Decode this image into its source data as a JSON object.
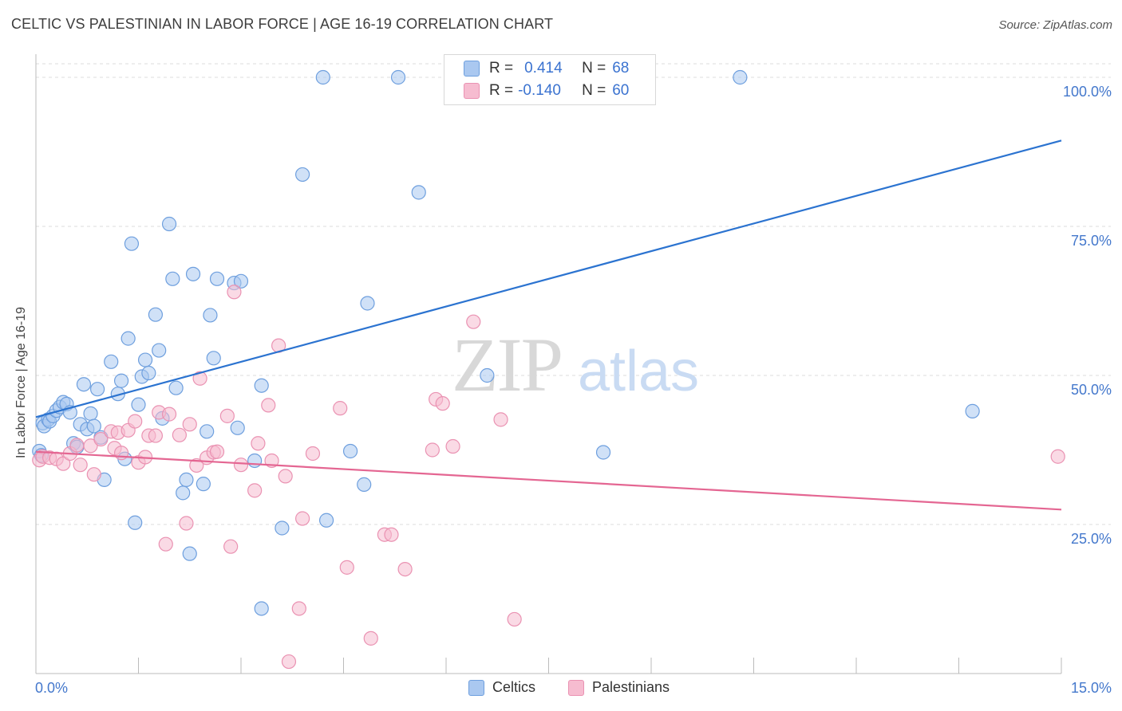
{
  "title": "CELTIC VS PALESTINIAN IN LABOR FORCE | AGE 16-19 CORRELATION CHART",
  "source": "Source: ZipAtlas.com",
  "watermark": {
    "zip": "ZIP",
    "atlas": "atlas"
  },
  "legend_box": {
    "rows": [
      {
        "r_label": "R =",
        "r_value": "0.414",
        "n_label": "N =",
        "n_value": "68"
      },
      {
        "r_label": "R =",
        "r_value": "-0.140",
        "n_label": "N =",
        "n_value": "60"
      }
    ]
  },
  "colors": {
    "celtic_fill": "#aac8f0",
    "celtic_stroke": "#6e9fde",
    "celtic_line": "#2b73d0",
    "pal_fill": "#f6bcd0",
    "pal_stroke": "#ea92b2",
    "pal_line": "#e46692",
    "axis_text": "#4478cc",
    "grid": "#dddddd"
  },
  "chart_data": {
    "type": "scatter",
    "title": "CELTIC VS PALESTINIAN IN LABOR FORCE | AGE 16-19 CORRELATION CHART",
    "xlabel": "",
    "ylabel": "In Labor Force | Age 16-19",
    "xlim": [
      0,
      15
    ],
    "ylim": [
      0,
      100
    ],
    "x_tick_labels": [
      "0.0%",
      "15.0%"
    ],
    "y_tick_labels": [
      "25.0%",
      "50.0%",
      "75.0%",
      "100.0%"
    ],
    "y_ticks": [
      25,
      50,
      75,
      100
    ],
    "grid": true,
    "legend": "bottom-center",
    "series": [
      {
        "name": "Celtics",
        "trend": {
          "x": [
            0.0,
            15.0
          ],
          "y": [
            43.0,
            89.4
          ]
        },
        "points": [
          [
            0.05,
            37.3
          ],
          [
            0.08,
            36.6
          ],
          [
            0.1,
            42.0
          ],
          [
            0.12,
            41.5
          ],
          [
            0.18,
            42.6
          ],
          [
            0.2,
            42.3
          ],
          [
            0.25,
            43.2
          ],
          [
            0.3,
            44.1
          ],
          [
            0.35,
            44.7
          ],
          [
            0.4,
            45.5
          ],
          [
            0.45,
            45.2
          ],
          [
            0.5,
            43.8
          ],
          [
            0.55,
            38.6
          ],
          [
            0.6,
            38.0
          ],
          [
            0.65,
            41.8
          ],
          [
            0.7,
            48.5
          ],
          [
            0.75,
            41.0
          ],
          [
            0.8,
            43.6
          ],
          [
            0.85,
            41.5
          ],
          [
            0.9,
            47.7
          ],
          [
            0.95,
            39.6
          ],
          [
            1.0,
            32.5
          ],
          [
            1.1,
            52.3
          ],
          [
            1.2,
            46.9
          ],
          [
            1.25,
            49.1
          ],
          [
            1.3,
            36.0
          ],
          [
            1.35,
            56.2
          ],
          [
            1.4,
            72.1
          ],
          [
            1.45,
            25.3
          ],
          [
            1.5,
            45.1
          ],
          [
            1.55,
            49.8
          ],
          [
            1.6,
            52.6
          ],
          [
            1.65,
            50.4
          ],
          [
            1.75,
            60.2
          ],
          [
            1.8,
            54.2
          ],
          [
            1.85,
            42.8
          ],
          [
            1.95,
            75.4
          ],
          [
            2.0,
            66.2
          ],
          [
            2.05,
            47.9
          ],
          [
            2.15,
            30.3
          ],
          [
            2.2,
            32.5
          ],
          [
            2.25,
            20.1
          ],
          [
            2.3,
            67.0
          ],
          [
            2.45,
            31.8
          ],
          [
            2.5,
            40.6
          ],
          [
            2.55,
            60.1
          ],
          [
            2.6,
            52.9
          ],
          [
            2.65,
            66.2
          ],
          [
            2.9,
            65.5
          ],
          [
            2.95,
            41.2
          ],
          [
            3.0,
            65.8
          ],
          [
            3.2,
            35.7
          ],
          [
            3.3,
            48.3
          ],
          [
            3.3,
            10.9
          ],
          [
            3.6,
            24.4
          ],
          [
            3.9,
            83.7
          ],
          [
            4.2,
            100.0
          ],
          [
            4.25,
            25.7
          ],
          [
            4.6,
            37.3
          ],
          [
            4.8,
            31.7
          ],
          [
            4.85,
            62.1
          ],
          [
            5.3,
            100.0
          ],
          [
            5.6,
            80.7
          ],
          [
            6.6,
            50.0
          ],
          [
            8.3,
            37.1
          ],
          [
            8.5,
            100.0
          ],
          [
            10.3,
            100.0
          ],
          [
            13.7,
            44.0
          ]
        ]
      },
      {
        "name": "Palestinians",
        "trend": {
          "x": [
            0.0,
            15.0
          ],
          "y": [
            37.2,
            27.5
          ]
        },
        "points": [
          [
            0.05,
            35.8
          ],
          [
            0.1,
            36.4
          ],
          [
            0.2,
            36.2
          ],
          [
            0.3,
            36.0
          ],
          [
            0.4,
            35.2
          ],
          [
            0.5,
            36.9
          ],
          [
            0.6,
            38.3
          ],
          [
            0.65,
            35.0
          ],
          [
            0.8,
            38.2
          ],
          [
            0.85,
            33.4
          ],
          [
            0.95,
            39.3
          ],
          [
            1.1,
            40.6
          ],
          [
            1.15,
            37.8
          ],
          [
            1.2,
            40.4
          ],
          [
            1.25,
            37.0
          ],
          [
            1.35,
            40.8
          ],
          [
            1.45,
            42.3
          ],
          [
            1.5,
            35.4
          ],
          [
            1.6,
            36.3
          ],
          [
            1.65,
            39.9
          ],
          [
            1.75,
            39.9
          ],
          [
            1.8,
            43.8
          ],
          [
            1.9,
            21.7
          ],
          [
            1.95,
            43.5
          ],
          [
            2.1,
            40.0
          ],
          [
            2.2,
            25.2
          ],
          [
            2.25,
            41.8
          ],
          [
            2.35,
            34.9
          ],
          [
            2.4,
            49.5
          ],
          [
            2.5,
            36.2
          ],
          [
            2.6,
            37.1
          ],
          [
            2.65,
            37.2
          ],
          [
            2.8,
            43.2
          ],
          [
            2.85,
            21.3
          ],
          [
            2.9,
            64.0
          ],
          [
            3.0,
            35.0
          ],
          [
            3.2,
            30.7
          ],
          [
            3.25,
            38.6
          ],
          [
            3.4,
            45.0
          ],
          [
            3.45,
            35.7
          ],
          [
            3.55,
            55.0
          ],
          [
            3.65,
            33.1
          ],
          [
            3.7,
            2.0
          ],
          [
            3.85,
            10.9
          ],
          [
            3.9,
            26.0
          ],
          [
            4.05,
            36.9
          ],
          [
            4.45,
            44.5
          ],
          [
            4.55,
            17.8
          ],
          [
            4.9,
            5.9
          ],
          [
            5.1,
            23.3
          ],
          [
            5.2,
            23.3
          ],
          [
            5.4,
            17.5
          ],
          [
            5.8,
            37.5
          ],
          [
            5.85,
            46.0
          ],
          [
            5.95,
            45.3
          ],
          [
            6.1,
            38.1
          ],
          [
            6.4,
            59.0
          ],
          [
            6.8,
            42.6
          ],
          [
            7.0,
            9.1
          ],
          [
            14.95,
            36.4
          ]
        ]
      }
    ]
  },
  "bottom_legend": [
    {
      "label": "Celtics"
    },
    {
      "label": "Palestinians"
    }
  ]
}
